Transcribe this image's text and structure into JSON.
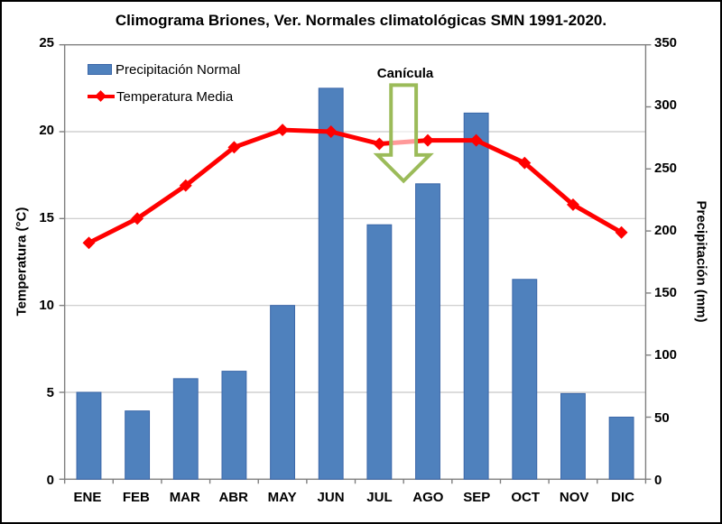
{
  "chart_data": {
    "type": "bar",
    "subtype": "combo-bar-line",
    "title": "Climograma Briones, Ver. Normales climatológicas SMN 1991-2020.",
    "categories": [
      "ENE",
      "FEB",
      "MAR",
      "ABR",
      "MAY",
      "JUN",
      "JUL",
      "AGO",
      "SEP",
      "OCT",
      "NOV",
      "DIC"
    ],
    "series": [
      {
        "name": "Precipitación Normal",
        "type": "bar",
        "axis": "right",
        "color": "#4f81bd",
        "border_color": "#3a66a8",
        "values": [
          70,
          55,
          81,
          87,
          140,
          315,
          205,
          238,
          295,
          161,
          69,
          50
        ]
      },
      {
        "name": "Temperatura Media",
        "type": "line",
        "axis": "left",
        "color": "#ff0000",
        "marker": "diamond",
        "values": [
          13.6,
          15.0,
          16.9,
          19.1,
          20.1,
          20.0,
          19.3,
          19.5,
          19.5,
          18.2,
          15.8,
          14.2
        ]
      }
    ],
    "left_axis": {
      "label": "Temperatura (°C)",
      "min": 0,
      "max": 25,
      "step": 5
    },
    "right_axis": {
      "label": "Precipitación (mm)",
      "min": 0,
      "max": 350,
      "step": 50
    },
    "grid": {
      "horizontal": true,
      "color": "#c8c8c8"
    },
    "axis_line_color": "#7f7f7f",
    "legend_position": "top-left-inside",
    "annotation": {
      "label": "Canícula",
      "between_categories": [
        "JUL",
        "AGO"
      ],
      "arrow_direction": "down",
      "arrow_color": "#9bbb59"
    }
  }
}
